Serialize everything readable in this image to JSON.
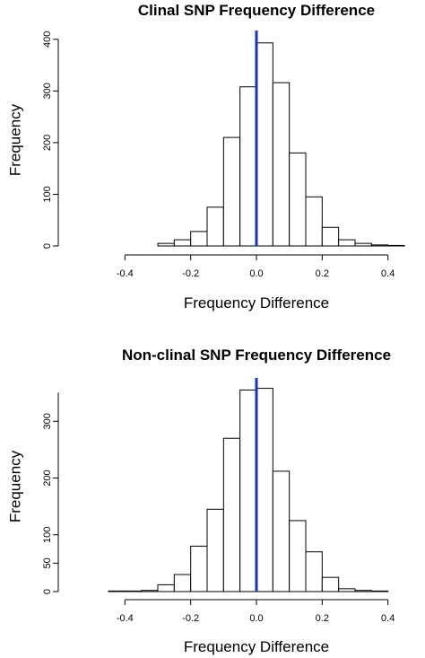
{
  "chart_data": [
    {
      "type": "bar",
      "title": "Clinal SNP Frequency Difference",
      "xlabel": "Frequency Difference",
      "ylabel": "Frequency",
      "xlim": [
        -0.45,
        0.45
      ],
      "ylim": [
        0,
        410
      ],
      "bin_edges": [
        -0.3,
        -0.25,
        -0.2,
        -0.15,
        -0.1,
        -0.05,
        0.0,
        0.05,
        0.1,
        0.15,
        0.2,
        0.25,
        0.3,
        0.35,
        0.4,
        0.45
      ],
      "values": [
        5,
        12,
        28,
        75,
        210,
        308,
        393,
        316,
        180,
        95,
        36,
        12,
        5,
        2,
        1
      ],
      "x_ticks": [
        "-0.4",
        "-0.2",
        "0.0",
        "0.2",
        "0.4"
      ],
      "x_tick_values": [
        -0.4,
        -0.2,
        0.0,
        0.2,
        0.4
      ],
      "y_ticks": [
        "0",
        "100",
        "200",
        "300",
        "400"
      ],
      "y_tick_values": [
        0,
        100,
        200,
        300,
        400
      ],
      "vline_x": 0.0,
      "vline_color": "#1a32c4",
      "grid": false
    },
    {
      "type": "bar",
      "title": "Non-clinal SNP Frequency Difference",
      "xlabel": "Frequency Difference",
      "ylabel": "Frequency",
      "xlim": [
        -0.45,
        0.45
      ],
      "ylim": [
        0,
        370
      ],
      "bin_edges": [
        -0.45,
        -0.4,
        -0.35,
        -0.3,
        -0.25,
        -0.2,
        -0.15,
        -0.1,
        -0.05,
        0.0,
        0.05,
        0.1,
        0.15,
        0.2,
        0.25,
        0.3,
        0.35,
        0.4
      ],
      "values": [
        1,
        1,
        2,
        12,
        30,
        80,
        145,
        270,
        355,
        358,
        212,
        125,
        70,
        25,
        5,
        2,
        1
      ],
      "x_ticks": [
        "-0.4",
        "-0.2",
        "0.0",
        "0.2",
        "0.4"
      ],
      "x_tick_values": [
        -0.4,
        -0.2,
        0.0,
        0.2,
        0.4
      ],
      "y_ticks": [
        "0",
        "50",
        "100",
        "200",
        "300"
      ],
      "y_tick_values": [
        0,
        50,
        100,
        200,
        300
      ],
      "vline_x": 0.0,
      "vline_color": "#1a32c4",
      "grid": false
    }
  ]
}
